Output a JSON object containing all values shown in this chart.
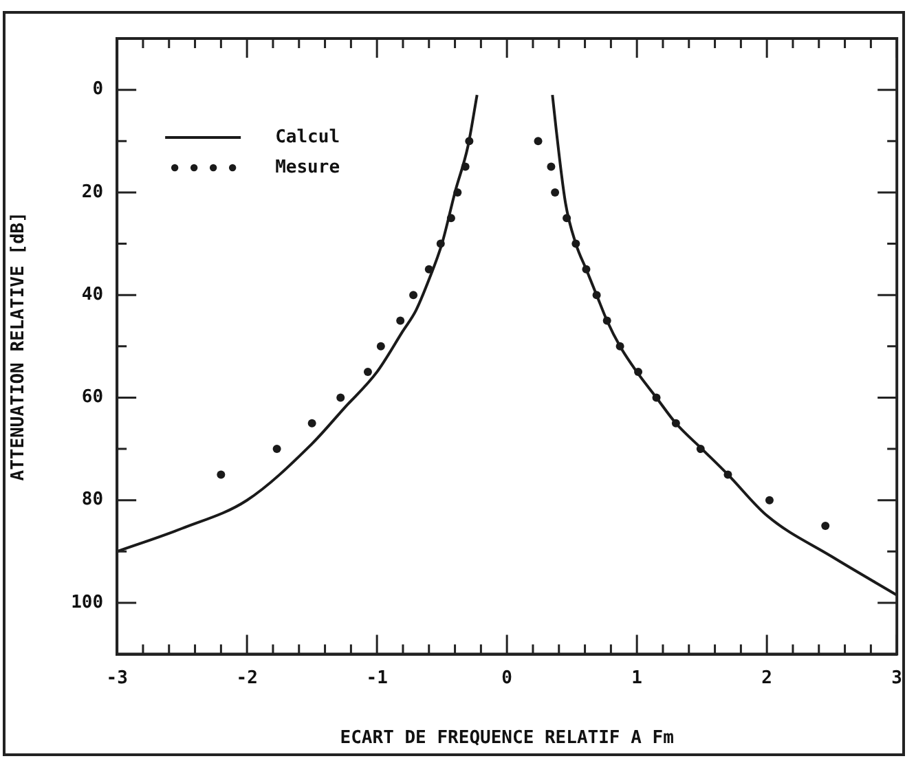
{
  "chart_data": {
    "type": "line",
    "xlabel": "ECART DE FREQUENCE RELATIF A Fm",
    "ylabel": "ATTENUATION RELATIVE [dB]",
    "xlim": [
      -3,
      3
    ],
    "ylim": [
      110,
      -10
    ],
    "xticks": [
      -3,
      {
        "value": -2.8,
        "label": null
      },
      {
        "value": -2.6,
        "label": null
      },
      {
        "value": -2.4,
        "label": null
      },
      {
        "value": -2.2,
        "label": null
      },
      -2,
      {
        "value": -1.8,
        "label": null
      },
      {
        "value": -1.6,
        "label": null
      },
      {
        "value": -1.4,
        "label": null
      },
      {
        "value": -1.2,
        "label": null
      },
      -1,
      {
        "value": -0.8,
        "label": null
      },
      {
        "value": -0.6,
        "label": null
      },
      {
        "value": -0.4,
        "label": null
      },
      {
        "value": -0.2,
        "label": null
      },
      0,
      {
        "value": 0.2,
        "label": null
      },
      {
        "value": 0.4,
        "label": null
      },
      {
        "value": 0.6,
        "label": null
      },
      {
        "value": 0.8,
        "label": null
      },
      1,
      {
        "value": 1.2,
        "label": null
      },
      {
        "value": 1.4,
        "label": null
      },
      {
        "value": 1.6,
        "label": null
      },
      {
        "value": 1.8,
        "label": null
      },
      2,
      {
        "value": 2.2,
        "label": null
      },
      {
        "value": 2.4,
        "label": null
      },
      {
        "value": 2.6,
        "label": null
      },
      {
        "value": 2.8,
        "label": null
      },
      3
    ],
    "yticks": [
      0,
      {
        "value": 10,
        "label": null
      },
      20,
      {
        "value": 30,
        "label": null
      },
      40,
      {
        "value": 50,
        "label": null
      },
      60,
      {
        "value": 70,
        "label": null
      },
      80,
      {
        "value": 90,
        "label": null
      },
      100
    ],
    "grid": false,
    "legend": "top left",
    "series": [
      {
        "name": "Calcul",
        "type": "line",
        "color": "#1a1a1a",
        "line_style": "solid",
        "marker": "none",
        "x": [
          -3,
          -2.5,
          -2,
          -1.5,
          -1.25,
          -1,
          -0.8,
          -0.7,
          -0.6,
          -0.5,
          -0.4,
          -0.3,
          -0.23,
          0.06,
          0.35,
          0.38,
          0.45,
          0.53,
          0.61,
          0.69,
          0.77,
          0.87,
          1,
          1.15,
          1.3,
          1.5,
          1.7,
          2,
          2.5,
          3
        ],
        "values": [
          90,
          85.5,
          80,
          69,
          62,
          55,
          47,
          43,
          37,
          30,
          20,
          11,
          1,
          null,
          1,
          8,
          22,
          30,
          35,
          40,
          45,
          50,
          55,
          60,
          65,
          70,
          75,
          83,
          91,
          98.5
        ]
      },
      {
        "name": "Mesure",
        "type": "scatter",
        "color": "#1a1a1a",
        "marker": "circle",
        "x": [
          -2.2,
          -1.77,
          -1.5,
          -1.28,
          -1.07,
          -0.97,
          -0.82,
          -0.72,
          -0.6,
          -0.51,
          -0.43,
          -0.38,
          -0.32,
          -0.29,
          0.24,
          0.34,
          0.37,
          0.46,
          0.53,
          0.61,
          0.69,
          0.77,
          0.87,
          1.01,
          1.15,
          1.3,
          1.49,
          1.7,
          2.02,
          2.45
        ],
        "values": [
          75,
          70,
          65,
          60,
          55,
          50,
          45,
          40,
          35,
          30,
          25,
          20,
          15,
          10,
          10,
          15,
          20,
          25,
          30,
          35,
          40,
          45,
          50,
          55,
          60,
          65,
          70,
          75,
          80,
          85
        ]
      }
    ]
  }
}
